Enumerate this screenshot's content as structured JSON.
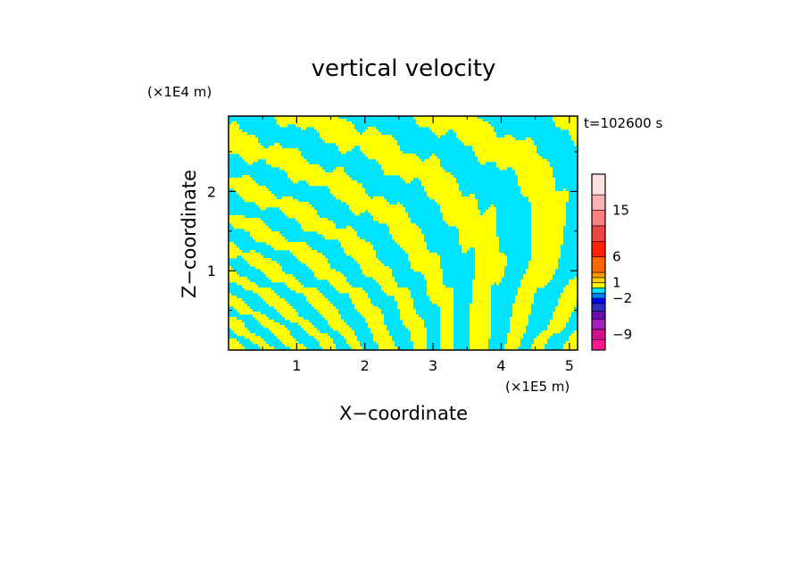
{
  "chart_data": {
    "type": "heatmap",
    "title": "vertical velocity",
    "xlabel": "X−coordinate",
    "ylabel": "Z−coordinate",
    "x_unit": "(×1E5 m)",
    "y_unit": "(×1E4 m)",
    "time_label": "t=102600 s",
    "xlim": [
      0,
      5.12
    ],
    "ylim": [
      0,
      2.95
    ],
    "x_ticks": [
      1,
      2,
      3,
      4,
      5
    ],
    "y_ticks": [
      1,
      2
    ],
    "x_tick_labels": [
      "1",
      "2",
      "3",
      "4",
      "5"
    ],
    "y_tick_labels": [
      "1",
      "2"
    ],
    "dominant_colors": {
      "positive_weak": "#ffff00",
      "negative_weak": "#00e5ff"
    },
    "colorbar": {
      "levels": [
        {
          "color": "#ff1493"
        },
        {
          "color": "#d0108c"
        },
        {
          "color": "#a020c0"
        },
        {
          "color": "#6a0dad"
        },
        {
          "color": "#3030c0"
        },
        {
          "color": "#0000ff"
        },
        {
          "color": "#0080ff"
        },
        {
          "color": "#00e5ff"
        },
        {
          "color": "#ffff00"
        },
        {
          "color": "#ffd000"
        },
        {
          "color": "#ff9900"
        },
        {
          "color": "#ff6600"
        },
        {
          "color": "#ff2000"
        },
        {
          "color": "#ee4444"
        },
        {
          "color": "#ff8080"
        },
        {
          "color": "#ffb0b0"
        },
        {
          "color": "#ffe0e0"
        }
      ],
      "tick_labels": [
        {
          "label": "15",
          "value": 15
        },
        {
          "label": "6",
          "value": 6
        },
        {
          "label": "1",
          "value": 1
        },
        {
          "label": "−2",
          "value": -2
        },
        {
          "label": "−9",
          "value": -9
        }
      ]
    }
  }
}
